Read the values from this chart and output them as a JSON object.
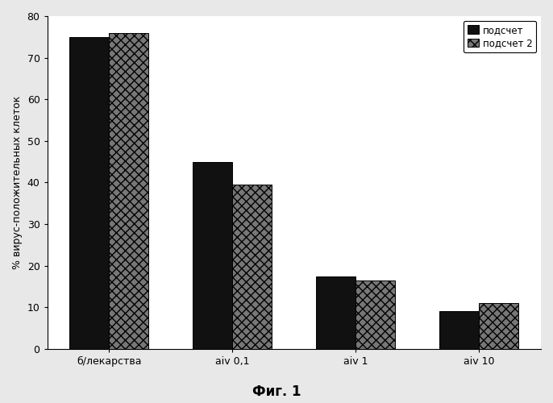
{
  "categories": [
    "б/лекарства",
    "aiv 0,1",
    "aiv 1",
    "aiv 10"
  ],
  "series1_values": [
    75,
    45,
    17.5,
    9
  ],
  "series2_values": [
    76,
    39.5,
    16.5,
    11
  ],
  "series1_label": "подсчет",
  "series2_label": "подсчет 2",
  "series1_color": "#111111",
  "series2_color": "#777777",
  "series2_hatch": "xxx",
  "ylabel": "% вирус-положительных клеток",
  "xlabel_fig": "Фиг. 1",
  "ylim": [
    0,
    80
  ],
  "yticks": [
    0,
    10,
    20,
    30,
    40,
    50,
    60,
    70,
    80
  ],
  "bar_width": 0.32,
  "background_color": "#ffffff",
  "figure_background": "#e8e8e8",
  "axis_fontsize": 9,
  "tick_fontsize": 9,
  "legend_fontsize": 8.5,
  "fig_label_fontsize": 12
}
